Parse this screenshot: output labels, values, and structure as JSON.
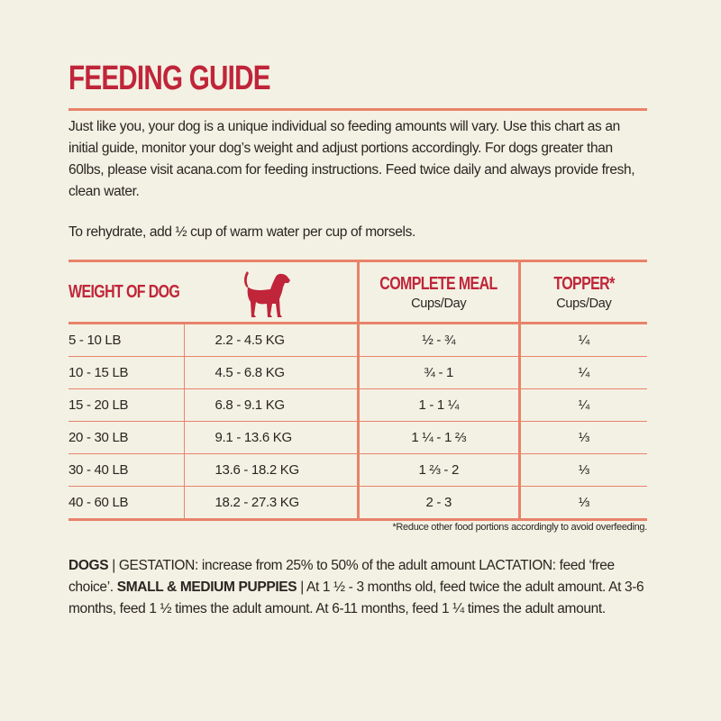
{
  "title": "FEEDING GUIDE",
  "intro": "Just like you, your dog is a unique individual so feeding amounts will vary. Use this chart as an initial guide, monitor your dog’s weight and adjust portions accordingly. For dogs greater than 60lbs, please visit acana.com for feeding instructions. Feed twice daily and always provide fresh, clean water.",
  "rehydrate": "To rehydrate, add ½ cup of warm water per cup of morsels.",
  "table": {
    "header": {
      "weight": "WEIGHT OF DOG",
      "complete_meal": "COMPLETE MEAL",
      "complete_meal_unit": "Cups/Day",
      "topper": "TOPPER*",
      "topper_unit": "Cups/Day",
      "icon": "dog-silhouette-icon"
    },
    "rows": [
      {
        "lb": "5 - 10 LB",
        "kg": "2.2 - 4.5 KG",
        "meal": "½ - ¾",
        "topper": "¼"
      },
      {
        "lb": "10 - 15 LB",
        "kg": "4.5 - 6.8 KG",
        "meal": "¾ - 1",
        "topper": "¼"
      },
      {
        "lb": "15 - 20 LB",
        "kg": "6.8 - 9.1 KG",
        "meal": "1 - 1 ¼",
        "topper": "¼"
      },
      {
        "lb": "20 - 30 LB",
        "kg": "9.1 - 13.6 KG",
        "meal": "1 ¼ - 1 ⅔",
        "topper": "⅓"
      },
      {
        "lb": "30 - 40 LB",
        "kg": "13.6 - 18.2 KG",
        "meal": "1 ⅔ - 2",
        "topper": "⅓"
      },
      {
        "lb": "40 - 60 LB",
        "kg": "18.2 - 27.3 KG",
        "meal": "2 - 3",
        "topper": "⅓"
      }
    ]
  },
  "footnote": "*Reduce other food portions accordingly to avoid overfeeding.",
  "bottom": {
    "dogs_label": "DOGS",
    "dogs_text": " | GESTATION: increase from 25% to 50% of the adult amount LACTATION: feed ‘free choice’. ",
    "puppies_label": "SMALL & MEDIUM PUPPIES",
    "puppies_text": " | At 1 ½ - 3 months old, feed twice the adult amount. At 3-6 months, feed 1 ½ times the adult amount. At 6-11 months, feed 1 ¼ times the adult amount."
  },
  "colors": {
    "accent": "#c0253a",
    "rule": "#e8836b",
    "background": "#f3f1e3"
  }
}
